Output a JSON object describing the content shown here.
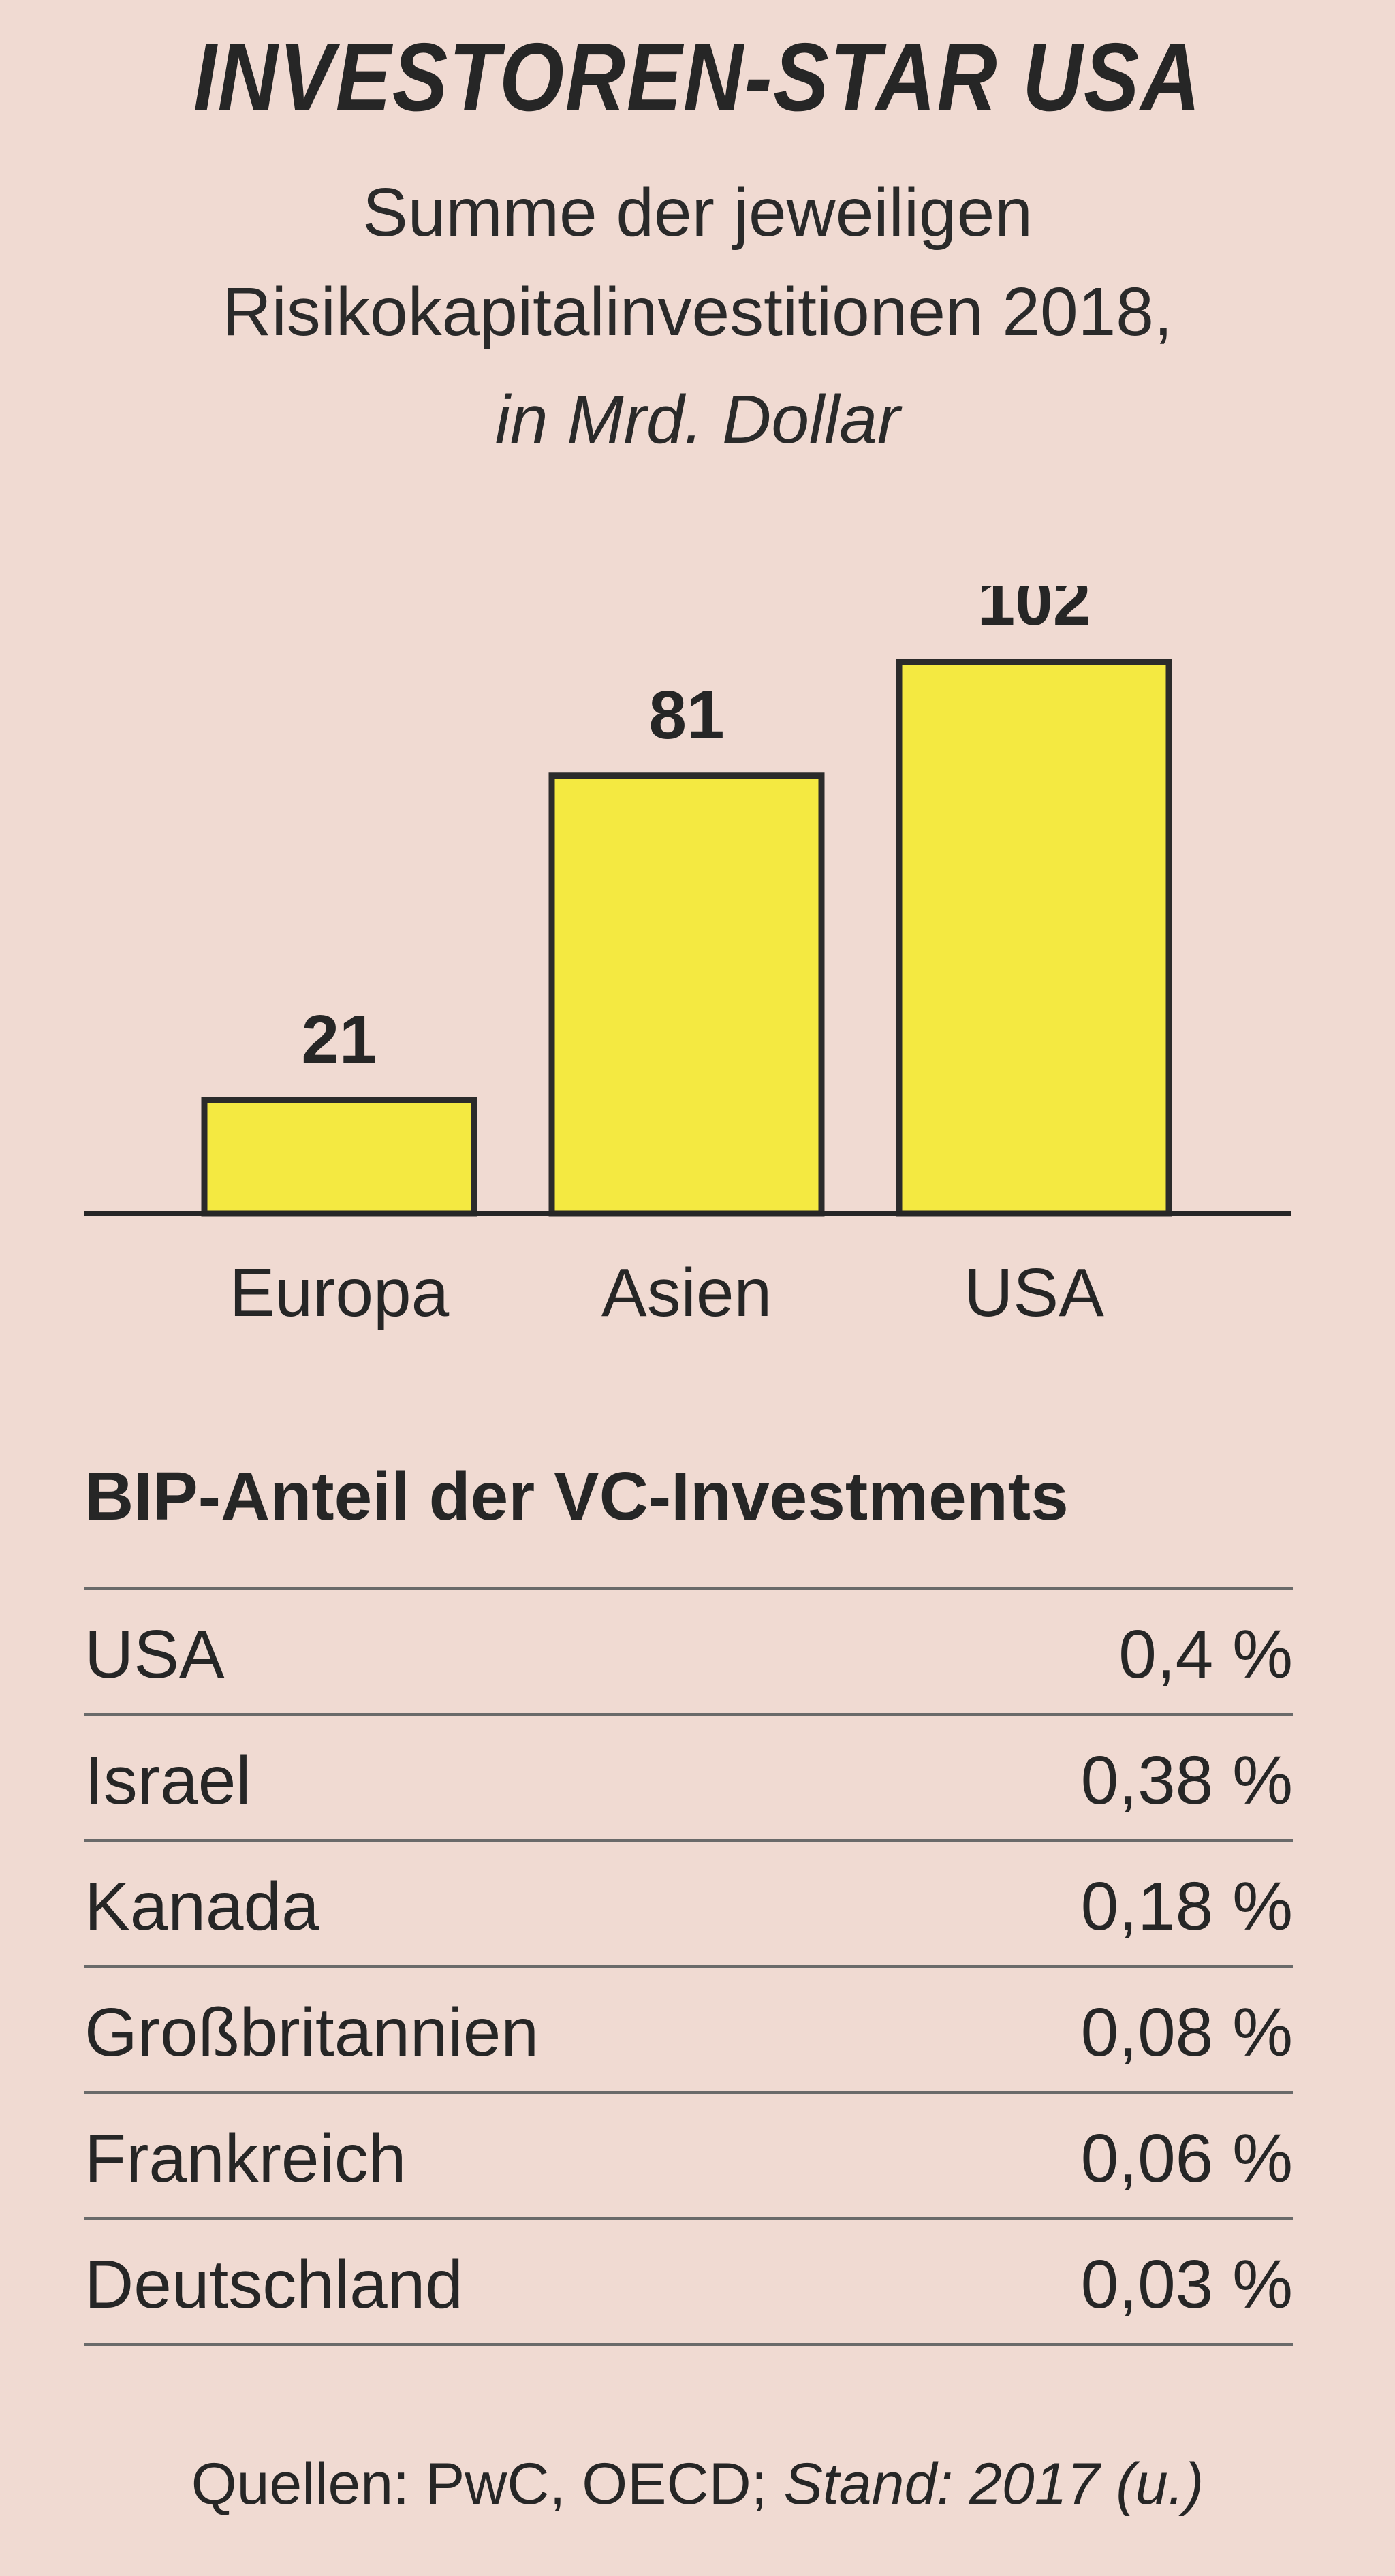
{
  "header": {
    "title": "INVESTOREN-STAR USA",
    "subtitle_line1": "Summe der jeweiligen",
    "subtitle_line2": "Risikokapitalinvestitionen 2018,",
    "subtitle_line3": "in Mrd. Dollar"
  },
  "chart_data": {
    "type": "bar",
    "categories": [
      "Europa",
      "Asien",
      "USA"
    ],
    "values": [
      21,
      81,
      102
    ],
    "ylim": [
      0,
      102
    ],
    "grid": false,
    "bar_color": "#f4e941",
    "bar_outline_color": "#2b2b2b",
    "data_labels": [
      "21",
      "81",
      "102"
    ]
  },
  "table": {
    "title": "BIP-Anteil der VC-Investments",
    "rows": [
      {
        "country": "USA",
        "value": "0,4 %"
      },
      {
        "country": "Israel",
        "value": "0,38 %"
      },
      {
        "country": "Kanada",
        "value": "0,18 %"
      },
      {
        "country": "Großbritannien",
        "value": "0,08 %"
      },
      {
        "country": "Frankreich",
        "value": "0,06 %"
      },
      {
        "country": "Deutschland",
        "value": "0,03 %"
      }
    ]
  },
  "source": {
    "text": "Quellen: PwC, OECD; ",
    "stand": "Stand: 2017 (u.)"
  },
  "colors": {
    "background": "#f0dad2",
    "text": "#262626",
    "rule": "#6a6a6a"
  }
}
